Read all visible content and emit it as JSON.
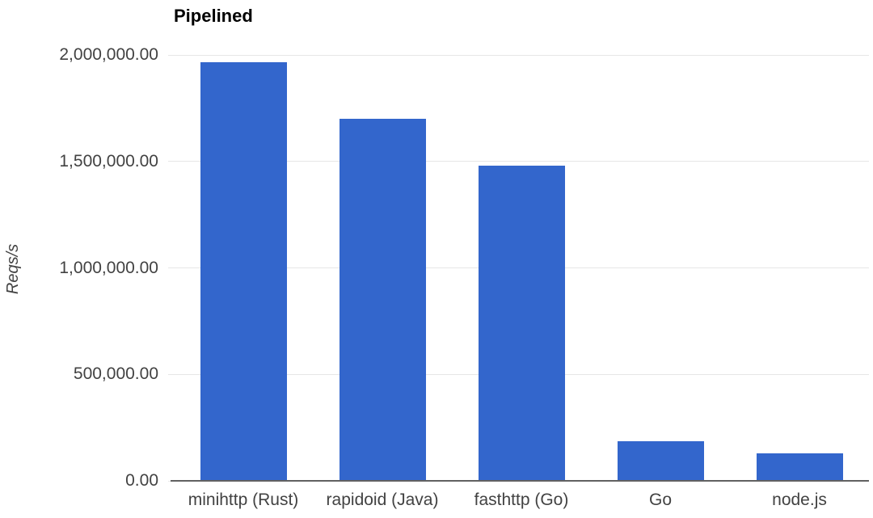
{
  "chart_data": {
    "type": "bar",
    "title": "Pipelined",
    "xlabel": "",
    "ylabel": "Reqs/s",
    "categories": [
      "minihttp (Rust)",
      "rapidoid (Java)",
      "fasthttp (Go)",
      "Go",
      "node.js"
    ],
    "values": [
      1965000,
      1700000,
      1480000,
      186000,
      129000
    ],
    "ylim": [
      0,
      2000000
    ],
    "yticks": [
      {
        "value": 0,
        "label": "0.00"
      },
      {
        "value": 500000,
        "label": "500,000.00"
      },
      {
        "value": 1000000,
        "label": "1,000,000.00"
      },
      {
        "value": 1500000,
        "label": "1,500,000.00"
      },
      {
        "value": 2000000,
        "label": "2,000,000.00"
      }
    ],
    "grid": true,
    "legend": "none",
    "colors": {
      "bar": "#3366cc",
      "gridline": "#e6e6e6",
      "axis_line": "#616161",
      "tick_label": "#424242",
      "title": "#000000",
      "background": "#ffffff"
    }
  }
}
